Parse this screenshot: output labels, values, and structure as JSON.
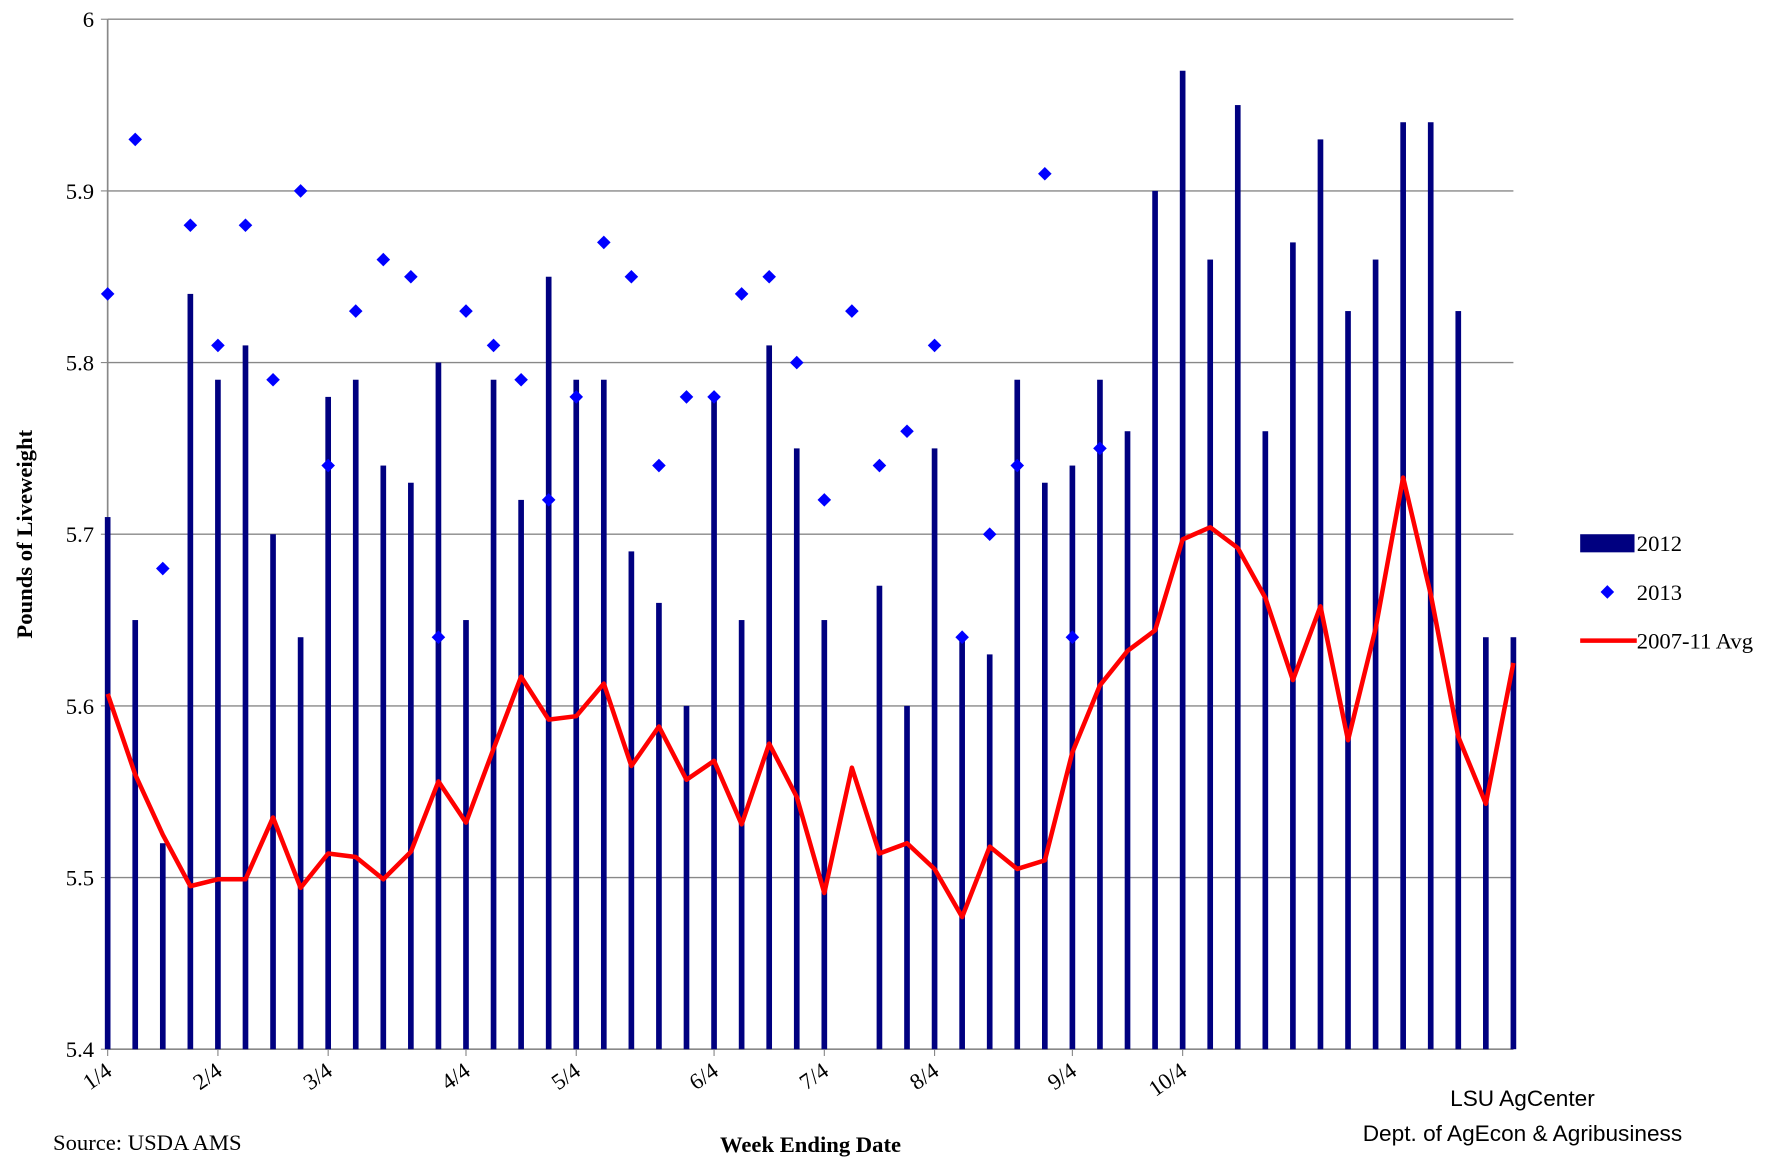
{
  "chart_data": {
    "type": "bar",
    "x_label": "Week Ending Date",
    "y_label": "Pounds of Liveweight",
    "categories": [
      "1/4",
      null,
      null,
      null,
      "2/4",
      null,
      null,
      null,
      "3/4",
      null,
      null,
      null,
      null,
      "4/4",
      null,
      null,
      null,
      "5/4",
      null,
      null,
      null,
      null,
      "6/4",
      null,
      null,
      null,
      "7/4",
      null,
      null,
      null,
      "8/4",
      null,
      null,
      null,
      null,
      "9/4",
      null,
      null,
      null,
      "10/4",
      null,
      null,
      null,
      null,
      null,
      null,
      null,
      null,
      null,
      null,
      null,
      null
    ],
    "series": [
      {
        "name": "2012",
        "type": "bar",
        "color": "#000080",
        "values": [
          5.71,
          5.65,
          5.52,
          5.84,
          5.79,
          5.81,
          5.7,
          5.64,
          5.78,
          5.79,
          5.74,
          5.73,
          5.8,
          5.65,
          5.79,
          5.72,
          5.85,
          5.79,
          5.79,
          5.69,
          5.66,
          5.6,
          5.78,
          5.65,
          5.81,
          5.75,
          5.65,
          null,
          5.67,
          5.6,
          5.75,
          5.64,
          5.63,
          5.79,
          5.73,
          5.74,
          5.79,
          5.76,
          5.9,
          5.97,
          5.86,
          5.95,
          5.76,
          5.87,
          5.93,
          5.83,
          5.86,
          5.94,
          5.94,
          5.83,
          5.64,
          5.64
        ]
      },
      {
        "name": "2013",
        "type": "scatter",
        "color": "#0000ff",
        "values": [
          5.84,
          5.93,
          5.68,
          5.88,
          5.81,
          5.88,
          5.79,
          5.9,
          5.74,
          5.83,
          5.86,
          5.85,
          5.64,
          5.83,
          5.81,
          5.79,
          5.72,
          5.78,
          5.87,
          5.85,
          5.74,
          5.78,
          5.78,
          5.84,
          5.85,
          5.8,
          5.72,
          5.83,
          5.74,
          5.76,
          5.81,
          5.64,
          5.7,
          5.74,
          5.91,
          5.64,
          5.75,
          null,
          null,
          null,
          null,
          null,
          null,
          null,
          null,
          null,
          null,
          null,
          null,
          null,
          null,
          null
        ]
      },
      {
        "name": "2007-11 Avg",
        "type": "line",
        "color": "#ff0000",
        "values": [
          5.607,
          5.56,
          5.525,
          5.495,
          5.499,
          5.499,
          5.535,
          5.494,
          5.514,
          5.512,
          5.499,
          5.515,
          5.556,
          5.532,
          5.575,
          5.617,
          5.592,
          5.594,
          5.613,
          5.565,
          5.588,
          5.557,
          5.568,
          5.531,
          5.578,
          5.547,
          5.491,
          5.564,
          5.514,
          5.52,
          5.505,
          5.477,
          5.518,
          5.505,
          5.51,
          5.573,
          5.612,
          5.632,
          5.644,
          5.697,
          5.704,
          5.692,
          5.663,
          5.615,
          5.658,
          5.58,
          5.645,
          5.733,
          5.665,
          5.582,
          5.543,
          5.625
        ]
      }
    ],
    "ylim": [
      5.4,
      6
    ],
    "yticks": [
      5.4,
      5.5,
      5.6,
      5.7,
      5.8,
      5.9,
      6
    ],
    "grid": true,
    "legend": "right",
    "source": "Source: USDA AMS",
    "credit": [
      "LSU AgCenter",
      "Dept. of  AgEcon & Agribusiness"
    ]
  }
}
